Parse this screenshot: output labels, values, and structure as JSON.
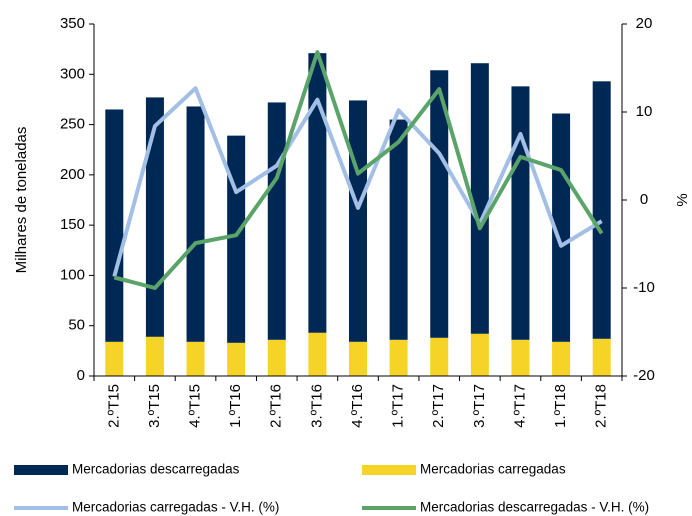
{
  "chart_data": {
    "type": "bar-line",
    "categories": [
      "2.ºT15",
      "3.ºT15",
      "4.ºT15",
      "1.ºT16",
      "2.ºT16",
      "3.ºT16",
      "4.ºT16",
      "1.ºT17",
      "2.ºT17",
      "3.ºT17",
      "4.ºT17",
      "1.ºT18",
      "2.ºT18"
    ],
    "ylabel": "Milhares de toneladas",
    "y2label": "%",
    "ylim": [
      0,
      350
    ],
    "yticks": [
      0,
      50,
      100,
      150,
      200,
      250,
      300,
      350
    ],
    "y2lim": [
      -20,
      20
    ],
    "y2ticks": [
      -20,
      -10,
      0,
      10,
      20
    ],
    "series": [
      {
        "name": "Mercadorias descarregadas",
        "color": "#002855",
        "kind": "bar",
        "values": [
          231,
          238,
          234,
          206,
          236,
          278,
          240,
          219,
          266,
          269,
          252,
          227,
          256
        ]
      },
      {
        "name": "Mercadorias carregadas",
        "color": "#f5d327",
        "kind": "bar",
        "values": [
          34,
          39,
          34,
          33,
          36,
          43,
          34,
          36,
          38,
          42,
          36,
          34,
          37
        ]
      },
      {
        "name": "Mercadorias carregadas - V.H. (%)",
        "color": "#a3bfe6",
        "kind": "line",
        "axis": "y2",
        "values": [
          -8.7,
          8.4,
          12.7,
          0.9,
          3.9,
          11.4,
          -0.9,
          10.2,
          5.3,
          -2.7,
          7.5,
          -5.2,
          -2.4
        ]
      },
      {
        "name": "Mercadorias descarregadas - V.H. (%)",
        "color": "#5aa469",
        "kind": "line",
        "axis": "y2",
        "values": [
          -8.8,
          -10,
          -4.9,
          -4,
          2.5,
          16.8,
          3,
          6.6,
          12.6,
          -3.2,
          4.9,
          3.4,
          -3.8
        ]
      }
    ]
  }
}
